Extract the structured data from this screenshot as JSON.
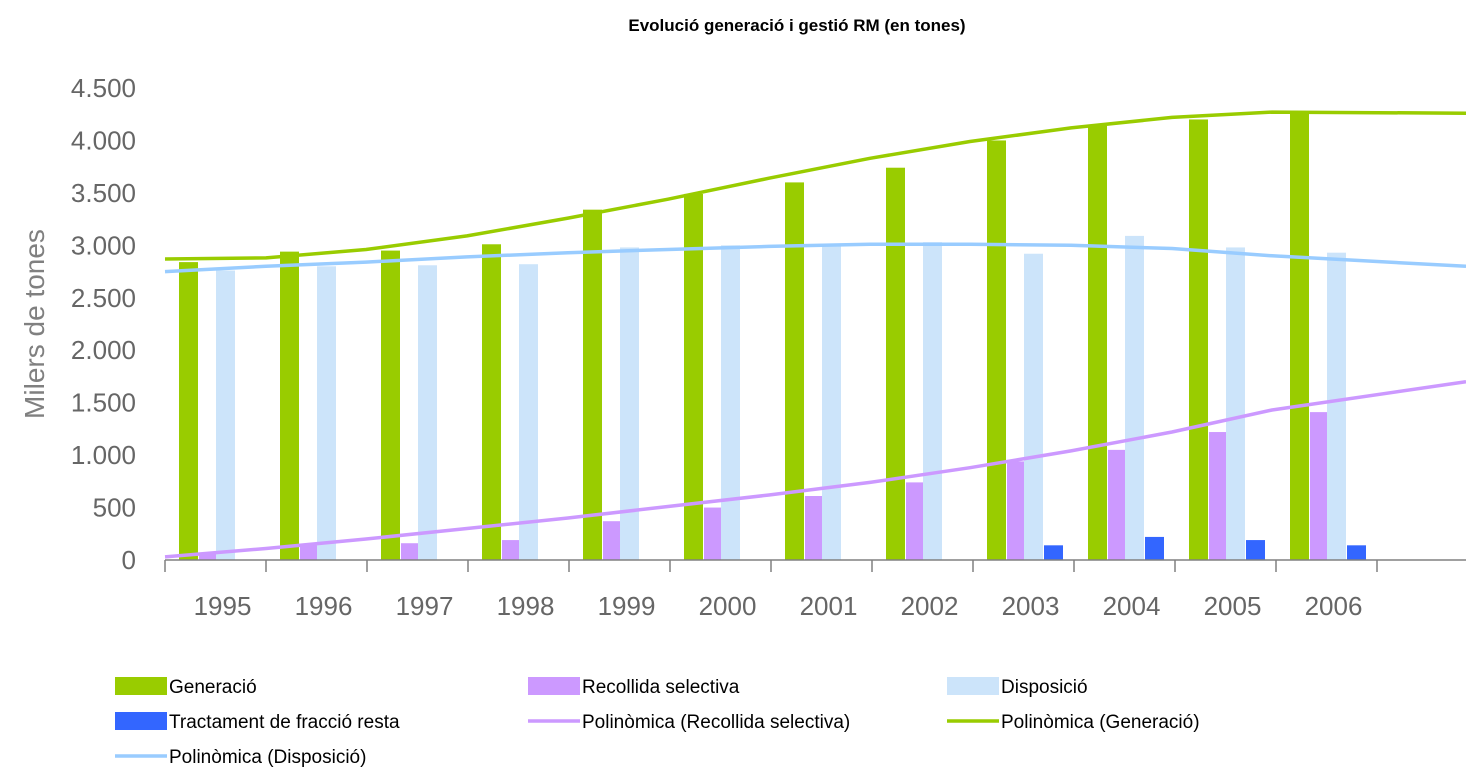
{
  "chart_data": {
    "type": "bar",
    "title": "Evolució generació i gestió RM (en tones)",
    "ylabel": "Milers de tones",
    "xlabel": "",
    "categories": [
      "1995",
      "1996",
      "1997",
      "1998",
      "1999",
      "2000",
      "2001",
      "2002",
      "2003",
      "2004",
      "2005",
      "2006"
    ],
    "ylim": [
      0,
      4500
    ],
    "yticks": [
      0,
      500,
      1000,
      1500,
      2000,
      2500,
      3000,
      3500,
      4000,
      4500
    ],
    "ytick_labels": [
      "0",
      "500",
      "1.000",
      "1.500",
      "2.000",
      "2.500",
      "3.000",
      "3.500",
      "4.000",
      "4.500"
    ],
    "grid": false,
    "legend_position": "bottom",
    "series": [
      {
        "name": "Generació",
        "kind": "bar",
        "color": "#99cc00",
        "values": [
          2840,
          2940,
          2950,
          3010,
          3340,
          3490,
          3600,
          3740,
          4000,
          4150,
          4200,
          4260
        ]
      },
      {
        "name": "Recollida selectiva",
        "kind": "bar",
        "color": "#cc99ff",
        "values": [
          70,
          140,
          160,
          190,
          370,
          500,
          610,
          740,
          940,
          1050,
          1220,
          1410
        ]
      },
      {
        "name": "Disposició",
        "kind": "bar",
        "color": "#cce4fa",
        "values": [
          2760,
          2800,
          2810,
          2820,
          2980,
          3000,
          3000,
          3030,
          2920,
          3090,
          2980,
          2930
        ]
      },
      {
        "name": "Tractament de fracció resta",
        "kind": "bar",
        "color": "#3366ff",
        "values": [
          0,
          0,
          0,
          0,
          0,
          0,
          0,
          0,
          140,
          220,
          190,
          140
        ]
      },
      {
        "name": "Polinòmica (Recollida selectiva)",
        "kind": "line",
        "color": "#cc99ff",
        "x": [
          0,
          1,
          2,
          3,
          4,
          5,
          6,
          7,
          8,
          9,
          10,
          11,
          12
        ],
        "values": [
          30,
          110,
          200,
          300,
          400,
          510,
          620,
          740,
          880,
          1040,
          1220,
          1430,
          1700
        ]
      },
      {
        "name": "Polinòmica (Generació)",
        "kind": "line",
        "color": "#99cc00",
        "x": [
          0,
          1,
          2,
          3,
          4,
          5,
          6,
          7,
          8,
          9,
          10,
          11,
          12
        ],
        "values": [
          2870,
          2880,
          2960,
          3090,
          3260,
          3440,
          3640,
          3830,
          3990,
          4120,
          4220,
          4270,
          4260
        ]
      },
      {
        "name": "Polinòmica (Disposició)",
        "kind": "line",
        "color": "#99ccff",
        "x": [
          0,
          1,
          2,
          3,
          4,
          5,
          6,
          7,
          8,
          9,
          10,
          11,
          12
        ],
        "values": [
          2750,
          2800,
          2840,
          2890,
          2930,
          2960,
          2990,
          3010,
          3010,
          3000,
          2970,
          2900,
          2800
        ]
      }
    ]
  }
}
